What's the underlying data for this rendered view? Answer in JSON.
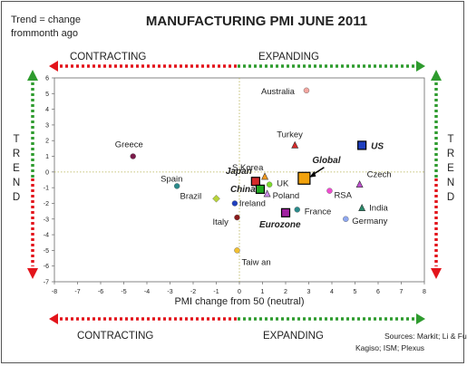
{
  "header": {
    "note_line1": "Trend = change",
    "note_line2": "frommonth ago",
    "sources_line1": "Sources: Markit; Li & Fung;",
    "sources_line2": "Kagiso; ISM; Plexus"
  },
  "side_labels": {
    "left_top": "CONTRACTING",
    "right_top": "EXPANDING",
    "left_bottom": "CONTRACTING",
    "right_bottom": "EXPANDING",
    "trend_left": "TREND",
    "trend_right": "TREND"
  },
  "colors": {
    "red_arrow": "#e3141b",
    "green_arrow": "#2e9b2e"
  },
  "chart_data": {
    "type": "scatter",
    "title": "MANUFACTURING PMI JUNE 2011",
    "xlabel": "PMI change from 50 (neutral)",
    "ylabel": "",
    "xlim": [
      -8,
      8
    ],
    "ylim": [
      -7,
      6
    ],
    "xticks": [
      "-8",
      "-7",
      "-6",
      "-5",
      "-4",
      "-3",
      "-2",
      "-1",
      "0",
      "1",
      "2",
      "3",
      "4",
      "5",
      "6",
      "7",
      "8"
    ],
    "yticks": [
      "6",
      "5",
      "4",
      "3",
      "2",
      "1",
      "0",
      "-1",
      "-2",
      "-3",
      "-4",
      "-5",
      "-6",
      "-7"
    ],
    "points": [
      {
        "label": "Australia",
        "x": 2.9,
        "y": 5.2,
        "color": "#f4a6a0",
        "marker": "circle"
      },
      {
        "label": "Turkey",
        "x": 2.4,
        "y": 1.7,
        "color": "#d42a2a",
        "marker": "triangle"
      },
      {
        "label": "Greece",
        "x": -4.6,
        "y": 1.0,
        "color": "#7a1a4a",
        "marker": "circle"
      },
      {
        "label": "US",
        "x": 5.3,
        "y": 1.7,
        "color": "#1f3fbf",
        "marker": "square"
      },
      {
        "label": "Global",
        "x": 2.8,
        "y": -0.4,
        "color": "#f2a20c",
        "marker": "square"
      },
      {
        "label": "S Korea",
        "x": 1.1,
        "y": -0.3,
        "color": "#f39a1e",
        "marker": "triangle"
      },
      {
        "label": "Spain",
        "x": -2.7,
        "y": -0.9,
        "color": "#2a8a8a",
        "marker": "circle"
      },
      {
        "label": "Japan",
        "x": 0.7,
        "y": -0.6,
        "color": "#d42a2a",
        "marker": "square"
      },
      {
        "label": "China",
        "x": 0.9,
        "y": -1.1,
        "color": "#22aa22",
        "marker": "square"
      },
      {
        "label": "UK",
        "x": 1.3,
        "y": -0.8,
        "color": "#7ddc2e",
        "marker": "circle"
      },
      {
        "label": "Poland",
        "x": 1.2,
        "y": -1.4,
        "color": "#c98be8",
        "marker": "triangle"
      },
      {
        "label": "Czech",
        "x": 5.2,
        "y": -0.8,
        "color": "#c050d0",
        "marker": "triangle"
      },
      {
        "label": "RSA",
        "x": 3.9,
        "y": -1.2,
        "color": "#f04ad0",
        "marker": "circle"
      },
      {
        "label": "Brazil",
        "x": -1.0,
        "y": -1.7,
        "color": "#b8d43a",
        "marker": "diamond"
      },
      {
        "label": "Ireland",
        "x": -0.2,
        "y": -2.0,
        "color": "#1f3fbf",
        "marker": "circle"
      },
      {
        "label": "France",
        "x": 2.5,
        "y": -2.4,
        "color": "#2a8a8a",
        "marker": "circle"
      },
      {
        "label": "India",
        "x": 5.3,
        "y": -2.3,
        "color": "#2a8a6a",
        "marker": "triangle"
      },
      {
        "label": "Eurozone",
        "x": 2.0,
        "y": -2.6,
        "color": "#a020a0",
        "marker": "square"
      },
      {
        "label": "Germany",
        "x": 4.6,
        "y": -3.0,
        "color": "#8fa8f0",
        "marker": "circle"
      },
      {
        "label": "Italy",
        "x": -0.1,
        "y": -2.9,
        "color": "#8a1a1a",
        "marker": "circle"
      },
      {
        "label": "Taiw an",
        "x": -0.1,
        "y": -5.0,
        "color": "#f2c030",
        "marker": "circle"
      }
    ]
  }
}
